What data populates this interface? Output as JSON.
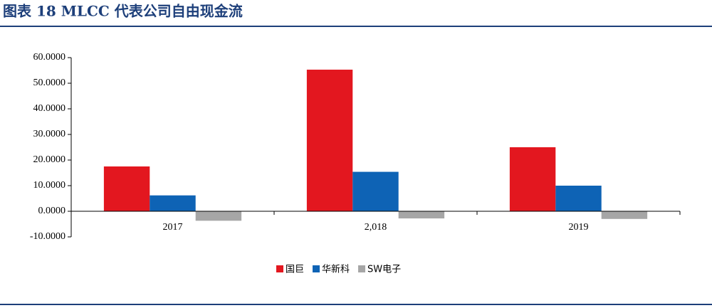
{
  "chart_data": {
    "type": "bar",
    "title": "图表 18 MLCC 代表公司自由现金流",
    "categories": [
      "2017",
      "2,018",
      "2019"
    ],
    "series": [
      {
        "name": "国巨",
        "color": "#e3171f",
        "values": [
          17.5,
          55.3,
          25.0
        ]
      },
      {
        "name": "华新科",
        "color": "#0e63b5",
        "values": [
          6.2,
          15.4,
          10.0
        ]
      },
      {
        "name": "SW电子",
        "color": "#a6a6a6",
        "values": [
          -3.7,
          -2.8,
          -3.0
        ]
      }
    ],
    "ylim": [
      -10,
      60
    ],
    "yticks": [
      {
        "value": -10,
        "label": "-10.0000"
      },
      {
        "value": 0,
        "label": "0.0000"
      },
      {
        "value": 10,
        "label": "10.0000"
      },
      {
        "value": 20,
        "label": "20.0000"
      },
      {
        "value": 30,
        "label": "30.0000"
      },
      {
        "value": 40,
        "label": "40.0000"
      },
      {
        "value": 50,
        "label": "50.0000"
      },
      {
        "value": 60,
        "label": "60.0000"
      }
    ],
    "legend": "bottom",
    "grid": false
  }
}
